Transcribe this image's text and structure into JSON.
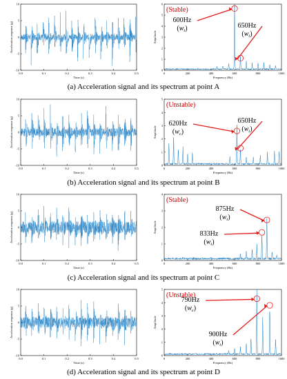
{
  "colors": {
    "signal": "#1f7fc4",
    "annotation": "#e21a1a",
    "state": "#cc0000"
  },
  "chart_data": [
    {
      "panel": "A-time",
      "type": "line",
      "xlabel": "Time (s)",
      "ylabel": "Acceleration response (g)",
      "xlim": [
        0,
        0.5
      ],
      "ylim": [
        -10,
        10
      ],
      "xticks": [
        "0.0",
        "0.1",
        "0.2",
        "0.3",
        "0.4",
        "0.5"
      ],
      "yticks": [
        "-10",
        "-5",
        "0",
        "5",
        "10"
      ],
      "spike_times": [
        0.02,
        0.045,
        0.07,
        0.095,
        0.12,
        0.145,
        0.17,
        0.195,
        0.22,
        0.245,
        0.27,
        0.295,
        0.32,
        0.345,
        0.37,
        0.395,
        0.42,
        0.445,
        0.47,
        0.495
      ],
      "spike_amp": 8,
      "noise_amp": 0.9
    },
    {
      "panel": "A-spectrum",
      "type": "line",
      "xlabel": "Frequency (Hz)",
      "ylabel": "Amplitude",
      "xlim": [
        0,
        1000
      ],
      "ylim": [
        0,
        6
      ],
      "xticks": [
        "0",
        "200",
        "400",
        "600",
        "800",
        "1000"
      ],
      "yticks": [
        "0",
        "1",
        "2",
        "3",
        "4",
        "5",
        "6"
      ],
      "state": "(Stable)",
      "peaks": [
        [
          600,
          5.4
        ],
        [
          650,
          1.2
        ],
        [
          550,
          0.5
        ],
        [
          700,
          0.6
        ],
        [
          750,
          0.5
        ],
        [
          800,
          0.55
        ],
        [
          850,
          0.45
        ],
        [
          900,
          0.4
        ],
        [
          500,
          0.3
        ],
        [
          450,
          0.25
        ],
        [
          950,
          0.3
        ]
      ],
      "annotations": [
        {
          "freq_label": "600Hz",
          "mode_base": "w",
          "mode_sub": "t",
          "freq": 600,
          "amp": 5.6
        },
        {
          "freq_label": "650Hz",
          "mode_base": "w",
          "mode_sub": "t",
          "freq": 650,
          "amp": 1.1
        }
      ]
    },
    {
      "panel": "B-time",
      "type": "line",
      "xlabel": "Time (s)",
      "ylabel": "Acceleration response (g)",
      "xlim": [
        0,
        0.5
      ],
      "ylim": [
        -10,
        10
      ],
      "xticks": [
        "0.0",
        "0.1",
        "0.2",
        "0.3",
        "0.4",
        "0.5"
      ],
      "yticks": [
        "-10",
        "-5",
        "0",
        "5",
        "10"
      ],
      "spike_times": [
        0.02,
        0.047,
        0.074,
        0.1,
        0.127,
        0.154,
        0.18,
        0.207,
        0.234,
        0.26,
        0.287,
        0.314,
        0.34,
        0.367,
        0.394,
        0.42,
        0.447,
        0.474
      ],
      "spike_amp": 9,
      "noise_amp": 1.2
    },
    {
      "panel": "B-spectrum",
      "type": "line",
      "xlabel": "Frequency (Hz)",
      "ylabel": "Amplitude",
      "xlim": [
        0,
        1000
      ],
      "ylim": [
        0,
        5
      ],
      "xticks": [
        "0",
        "200",
        "400",
        "600",
        "800",
        "1000"
      ],
      "yticks": [
        "0",
        "1",
        "2",
        "3",
        "4",
        "5"
      ],
      "state": "(Unstable)",
      "peaks": [
        [
          620,
          2.6
        ],
        [
          650,
          1.2
        ],
        [
          40,
          1.5
        ],
        [
          80,
          1.9
        ],
        [
          120,
          1.0
        ],
        [
          160,
          1.2
        ],
        [
          200,
          0.8
        ],
        [
          240,
          0.9
        ],
        [
          560,
          0.6
        ],
        [
          700,
          0.6
        ],
        [
          760,
          0.5
        ],
        [
          820,
          0.6
        ],
        [
          880,
          0.8
        ],
        [
          940,
          1.0
        ],
        [
          980,
          1.1
        ]
      ],
      "annotations": [
        {
          "freq_label": "620Hz",
          "mode_base": "w",
          "mode_sub": "c",
          "freq": 620,
          "amp": 2.6
        },
        {
          "freq_label": "650Hz",
          "mode_base": "w",
          "mode_sub": "t",
          "freq": 650,
          "amp": 1.3
        }
      ]
    },
    {
      "panel": "C-time",
      "type": "line",
      "xlabel": "Time (s)",
      "ylabel": "Acceleration response (g)",
      "xlim": [
        0,
        0.5
      ],
      "ylim": [
        -10,
        10
      ],
      "xticks": [
        "0.0",
        "0.1",
        "0.2",
        "0.3",
        "0.4",
        "0.5"
      ],
      "yticks": [
        "-10",
        "-5",
        "0",
        "5",
        "10"
      ],
      "spike_times": [
        0.02,
        0.047,
        0.074,
        0.1,
        0.127,
        0.154,
        0.18,
        0.207,
        0.234,
        0.26,
        0.287,
        0.314,
        0.34,
        0.367,
        0.394,
        0.42,
        0.447,
        0.474
      ],
      "spike_amp": 6,
      "noise_amp": 1.8
    },
    {
      "panel": "C-spectrum",
      "type": "line",
      "xlabel": "Frequency (Hz)",
      "ylabel": "Amplitude",
      "xlim": [
        0,
        1000
      ],
      "ylim": [
        0,
        4
      ],
      "xticks": [
        "0",
        "200",
        "400",
        "600",
        "800",
        "1000"
      ],
      "yticks": [
        "0",
        "1",
        "2",
        "3",
        "4"
      ],
      "state": "(Stable)",
      "peaks": [
        [
          875,
          2.4
        ],
        [
          833,
          1.6
        ],
        [
          790,
          0.8
        ],
        [
          750,
          0.5
        ],
        [
          700,
          0.4
        ],
        [
          920,
          0.5
        ],
        [
          960,
          0.3
        ],
        [
          650,
          0.3
        ]
      ],
      "annotations": [
        {
          "freq_label": "875Hz",
          "mode_base": "w",
          "mode_sub": "t",
          "freq": 875,
          "amp": 2.45
        },
        {
          "freq_label": "833Hz",
          "mode_base": "w",
          "mode_sub": "t",
          "freq": 833,
          "amp": 1.7
        }
      ]
    },
    {
      "panel": "D-time",
      "type": "line",
      "xlabel": "Time (s)",
      "ylabel": "Acceleration response (g)",
      "xlim": [
        0,
        0.5
      ],
      "ylim": [
        -10,
        10
      ],
      "xticks": [
        "0.0",
        "0.1",
        "0.2",
        "0.3",
        "0.4",
        "0.5"
      ],
      "yticks": [
        "-10",
        "-5",
        "0",
        "5",
        "10"
      ],
      "spike_times": [
        0.02,
        0.047,
        0.074,
        0.1,
        0.127,
        0.154,
        0.18,
        0.207,
        0.234,
        0.26,
        0.287,
        0.314,
        0.34,
        0.367,
        0.394,
        0.42,
        0.447,
        0.474
      ],
      "spike_amp": 6.5,
      "noise_amp": 1.6
    },
    {
      "panel": "D-spectrum",
      "type": "line",
      "xlabel": "Frequency (Hz)",
      "ylabel": "Amplitude",
      "xlim": [
        0,
        1000
      ],
      "ylim": [
        0,
        5
      ],
      "xticks": [
        "0",
        "200",
        "400",
        "600",
        "800",
        "1000"
      ],
      "yticks": [
        "0",
        "1",
        "2",
        "3",
        "4",
        "5"
      ],
      "state": "(Unstable)",
      "peaks": [
        [
          790,
          4.4
        ],
        [
          900,
          3.7
        ],
        [
          840,
          2.8
        ],
        [
          740,
          1.2
        ],
        [
          700,
          0.7
        ],
        [
          950,
          1.0
        ],
        [
          650,
          0.5
        ],
        [
          600,
          0.4
        ],
        [
          550,
          0.3
        ]
      ],
      "annotations": [
        {
          "freq_label": "790Hz",
          "mode_base": "w",
          "mode_sub": "c",
          "freq": 790,
          "amp": 4.3
        },
        {
          "freq_label": "900Hz",
          "mode_base": "w",
          "mode_sub": "t",
          "freq": 900,
          "amp": 3.8
        }
      ]
    }
  ],
  "captions": [
    "(a) Acceleration signal and its spectrum at point A",
    "(b) Acceleration signal and its spectrum at point B",
    "(c) Acceleration signal and its spectrum at point C",
    "(d) Acceleration signal and its spectrum at point D"
  ]
}
